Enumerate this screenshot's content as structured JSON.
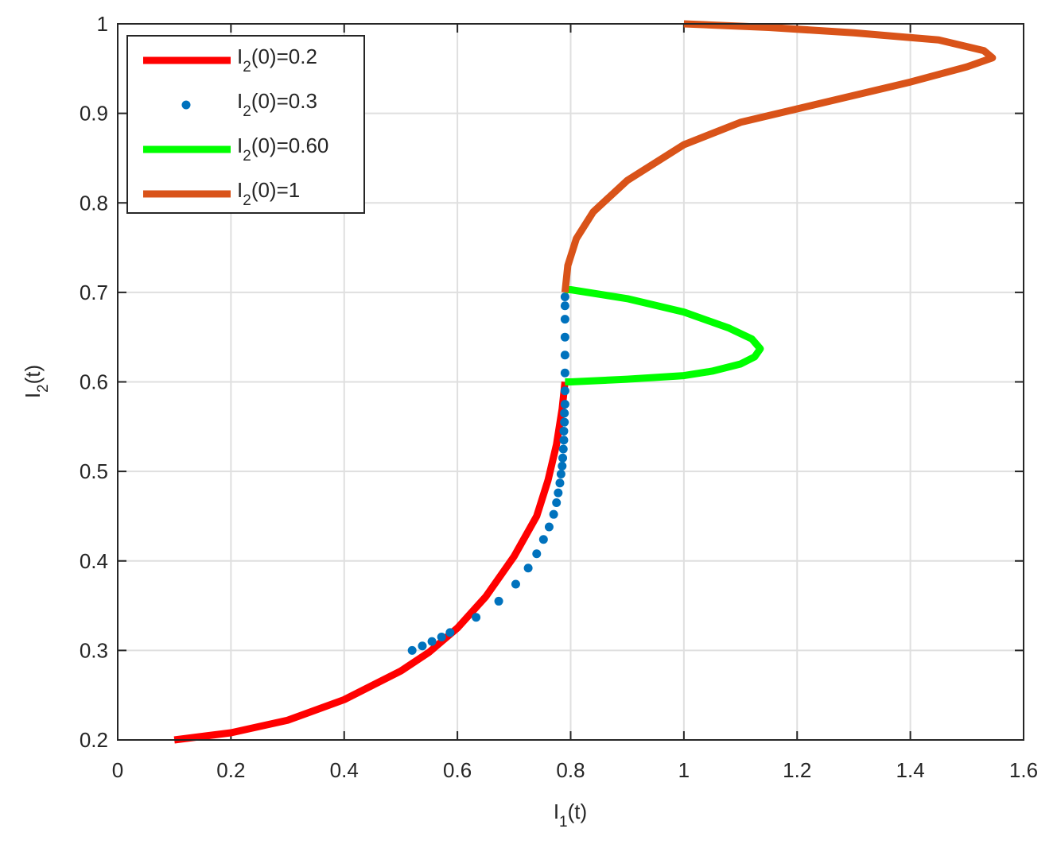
{
  "chart_data": {
    "type": "line",
    "xlabel": "I1(t)",
    "ylabel": "I2(t)",
    "xlim": [
      0,
      1.6
    ],
    "ylim": [
      0.2,
      1
    ],
    "xticks": [
      0,
      0.2,
      0.4,
      0.6,
      0.8,
      1,
      1.2,
      1.4,
      1.6
    ],
    "yticks": [
      0.2,
      0.3,
      0.4,
      0.5,
      0.6,
      0.7,
      0.8,
      0.9,
      1
    ],
    "grid": true,
    "legend": "upper-left",
    "series": [
      {
        "name": "I2(0)=0.2",
        "color": "#ff0000",
        "style": "line",
        "x": [
          0.1,
          0.2,
          0.3,
          0.4,
          0.5,
          0.55,
          0.6,
          0.65,
          0.7,
          0.74,
          0.76,
          0.775,
          0.785,
          0.79
        ],
        "y": [
          0.2,
          0.208,
          0.222,
          0.245,
          0.277,
          0.298,
          0.325,
          0.36,
          0.405,
          0.45,
          0.49,
          0.53,
          0.57,
          0.6
        ]
      },
      {
        "name": "I2(0)=0.3",
        "color": "#0072bd",
        "style": "markers",
        "x": [
          0.52,
          0.538,
          0.555,
          0.572,
          0.587,
          0.633,
          0.673,
          0.703,
          0.725,
          0.74,
          0.752,
          0.762,
          0.77,
          0.775,
          0.778,
          0.781,
          0.783,
          0.785,
          0.786,
          0.787,
          0.788,
          0.788,
          0.789,
          0.789,
          0.79,
          0.79,
          0.79,
          0.79,
          0.79,
          0.79,
          0.79,
          0.79
        ],
        "y": [
          0.3,
          0.305,
          0.31,
          0.315,
          0.32,
          0.337,
          0.355,
          0.374,
          0.392,
          0.408,
          0.424,
          0.438,
          0.452,
          0.465,
          0.476,
          0.487,
          0.497,
          0.506,
          0.515,
          0.525,
          0.535,
          0.545,
          0.555,
          0.565,
          0.575,
          0.59,
          0.61,
          0.63,
          0.65,
          0.67,
          0.685,
          0.695
        ]
      },
      {
        "name": "I2(0)=0.60",
        "color": "#00ff00",
        "style": "line",
        "x": [
          0.79,
          0.8,
          0.9,
          1.0,
          1.05,
          1.1,
          1.125,
          1.135,
          1.12,
          1.08,
          1.0,
          0.9,
          0.8,
          0.79
        ],
        "y": [
          0.6,
          0.6,
          0.603,
          0.607,
          0.612,
          0.62,
          0.628,
          0.637,
          0.648,
          0.66,
          0.678,
          0.693,
          0.703,
          0.703
        ]
      },
      {
        "name": "I2(0)=1",
        "color": "#d95319",
        "style": "line",
        "x": [
          0.79,
          0.795,
          0.81,
          0.84,
          0.9,
          1.0,
          1.1,
          1.2,
          1.3,
          1.4,
          1.5,
          1.545,
          1.53,
          1.45,
          1.3,
          1.15,
          1.0
        ],
        "y": [
          0.7,
          0.73,
          0.76,
          0.79,
          0.825,
          0.865,
          0.89,
          0.905,
          0.92,
          0.935,
          0.952,
          0.962,
          0.97,
          0.982,
          0.99,
          0.996,
          1.0
        ]
      }
    ]
  }
}
